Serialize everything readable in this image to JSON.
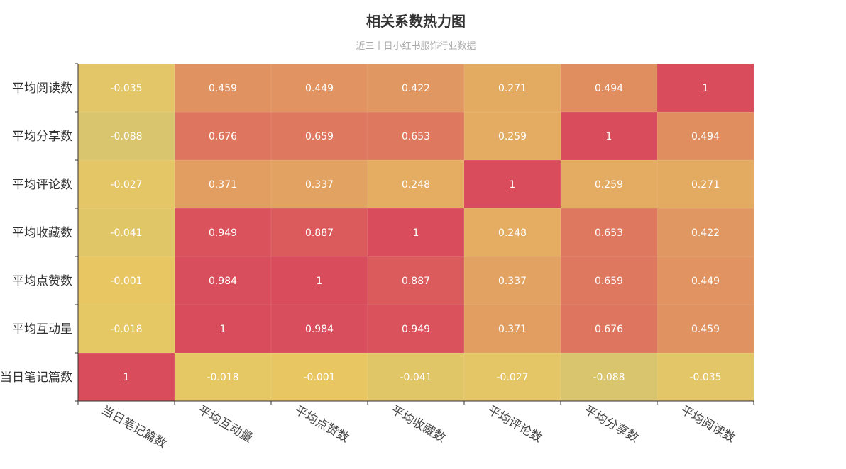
{
  "chart_data": {
    "type": "heatmap",
    "title": "相关系数热力图",
    "subtitle": "近三十日小红书服饰行业数据",
    "x_categories": [
      "当日笔记篇数",
      "平均互动量",
      "平均点赞数",
      "平均收藏数",
      "平均评论数",
      "平均分享数",
      "平均阅读数"
    ],
    "y_categories": [
      "当日笔记篇数",
      "平均互动量",
      "平均点赞数",
      "平均收藏数",
      "平均评论数",
      "平均分享数",
      "平均阅读数"
    ],
    "values": [
      [
        1,
        -0.018,
        -0.001,
        -0.041,
        -0.027,
        -0.088,
        -0.035
      ],
      [
        -0.018,
        1,
        0.984,
        0.949,
        0.371,
        0.676,
        0.459
      ],
      [
        -0.001,
        0.984,
        1,
        0.887,
        0.337,
        0.659,
        0.449
      ],
      [
        -0.041,
        0.949,
        0.887,
        1,
        0.248,
        0.653,
        0.422
      ],
      [
        -0.027,
        0.371,
        0.337,
        0.248,
        1,
        0.259,
        0.271
      ],
      [
        -0.088,
        0.676,
        0.659,
        0.653,
        0.259,
        1,
        0.494
      ],
      [
        -0.035,
        0.459,
        0.449,
        0.422,
        0.271,
        0.494,
        1
      ]
    ],
    "value_range": [
      -0.088,
      1
    ],
    "colors": {
      "low": "#d9c56e",
      "mid_low": "#e8c762",
      "mid": "#e3a862",
      "high": "#d94c5c"
    }
  }
}
